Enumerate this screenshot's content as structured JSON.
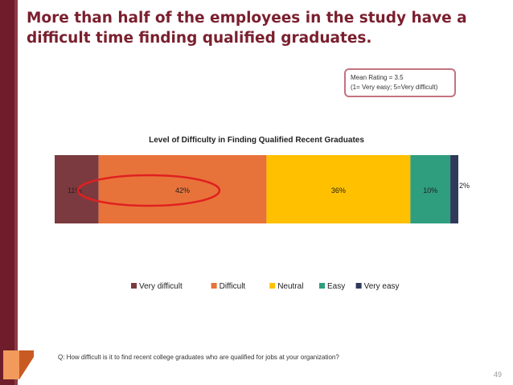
{
  "slide": {
    "title": "More than half of the employees in the study have a difficult time finding qualified graduates.",
    "mean_rating_line1": "Mean Rating = 3.5",
    "mean_rating_line2": "(1= Very easy; 5=Very difficult)",
    "question": "Q: How difficult is it to find recent college graduates who are qualified for jobs at your organization?",
    "page_number": "49"
  },
  "colors": {
    "accent": "#7a1f2e",
    "highlight_ellipse": "#e02020"
  },
  "chart_data": {
    "type": "bar",
    "orientation": "horizontal-stacked-100",
    "title": "Level of Difficulty in Finding Qualified Recent Graduates",
    "series": [
      {
        "name": "Very difficult",
        "value": 11,
        "label": "11%",
        "color": "#7b3a3f"
      },
      {
        "name": "Difficult",
        "value": 42,
        "label": "42%",
        "color": "#e8733a"
      },
      {
        "name": "Neutral",
        "value": 36,
        "label": "36%",
        "color": "#ffc000"
      },
      {
        "name": "Easy",
        "value": 10,
        "label": "10%",
        "color": "#2e9e7e"
      },
      {
        "name": "Very easy",
        "value": 2,
        "label": "2%",
        "color": "#2f3a5a"
      }
    ],
    "legend_position": "bottom",
    "grid": false
  }
}
